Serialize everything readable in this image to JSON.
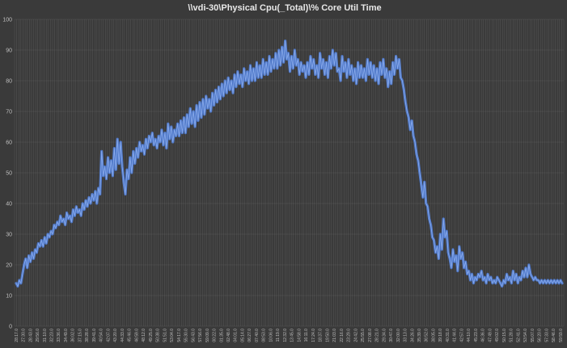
{
  "chart_data": {
    "type": "line",
    "title": "\\\\vdi-30\\Physical Cpu(_Total)\\% Core Util Time",
    "xlabel": "",
    "ylabel": "",
    "ylim": [
      0,
      100
    ],
    "yticks": [
      0,
      10,
      20,
      30,
      40,
      50,
      60,
      70,
      80,
      90,
      100
    ],
    "grid": true,
    "legend": "none",
    "colors": {
      "background": "#3a3a3a",
      "line": "#4f78c8",
      "line_glow": "#8fb0ee",
      "grid": "#7a7a7a",
      "text": "#bfbfbf"
    },
    "xtick_labels": [
      "28:17.0",
      "27:30.0",
      "28:43.0",
      "29:56.0",
      "31:10.0",
      "32:23.0",
      "33:36.0",
      "34:49.0",
      "36:02.0",
      "37:15.0",
      "38:28.0",
      "39:41.0",
      "40:54.0",
      "42:07.0",
      "43:20.0",
      "44:33.0",
      "45:46.0",
      "46:59.0",
      "48:12.0",
      "49:25.0",
      "50:38.0",
      "51:51.0",
      "53:04.0",
      "54:17.0",
      "55:30.0",
      "56:43.0",
      "57:56.0",
      "59:09.0",
      "00:22.0",
      "01:35.0",
      "02:48.0",
      "04:01.0",
      "05:14.0",
      "06:27.0",
      "07:40.0",
      "08:53.0",
      "10:06.0",
      "11:19.0",
      "12:32.0",
      "13:45.0",
      "14:58.0",
      "16:11.0",
      "17:24.0",
      "18:37.0",
      "19:50.0",
      "21:03.0",
      "22:16.0",
      "23:29.0",
      "24:42.0",
      "25:55.0",
      "27:08.0",
      "28:21.0",
      "29:34.0",
      "30:47.0",
      "32:00.0",
      "33:13.0",
      "34:26.0",
      "35:39.0",
      "36:52.0",
      "38:05.0",
      "39:18.0",
      "40:31.0",
      "41:44.0",
      "42:57.0",
      "44:10.0",
      "45:23.0",
      "46:36.0",
      "47:49.0",
      "49:02.0",
      "50:15.0",
      "51:28.0",
      "52:41.0",
      "53:54.0",
      "55:07.0",
      "56:20.0",
      "57:33.0",
      "58:46.0",
      "59:59.0"
    ],
    "series": [
      {
        "x_start": 0,
        "x_end": 100,
        "values": [
          14,
          13,
          15,
          14,
          17,
          20,
          22,
          19,
          23,
          21,
          24,
          22,
          25,
          24,
          27,
          26,
          28,
          26,
          29,
          27,
          30,
          29,
          31,
          30,
          33,
          32,
          34,
          33,
          36,
          34,
          35,
          33,
          37,
          35,
          36,
          34,
          38,
          36,
          39,
          37,
          38,
          36,
          40,
          38,
          41,
          39,
          42,
          40,
          43,
          41,
          44,
          40,
          45,
          43,
          57,
          49,
          52,
          48,
          55,
          50,
          54,
          49,
          58,
          51,
          61,
          53,
          60,
          52,
          47,
          43,
          51,
          48,
          55,
          50,
          57,
          53,
          58,
          55,
          60,
          57,
          59,
          56,
          61,
          58,
          62,
          60,
          63,
          59,
          61,
          58,
          62,
          60,
          64,
          59,
          63,
          58,
          66,
          61,
          65,
          60,
          64,
          62,
          66,
          62,
          67,
          63,
          68,
          63,
          69,
          65,
          71,
          66,
          70,
          65,
          72,
          67,
          73,
          68,
          74,
          69,
          75,
          71,
          74,
          70,
          76,
          72,
          77,
          73,
          78,
          74,
          79,
          75,
          80,
          76,
          81,
          77,
          80,
          76,
          82,
          78,
          83,
          79,
          82,
          78,
          84,
          80,
          83,
          79,
          85,
          80,
          84,
          80,
          86,
          81,
          85,
          81,
          87,
          82,
          86,
          82,
          88,
          83,
          87,
          84,
          89,
          84,
          90,
          85,
          91,
          86,
          93,
          87,
          89,
          83,
          88,
          84,
          90,
          85,
          87,
          82,
          86,
          83,
          85,
          81,
          86,
          82,
          88,
          84,
          87,
          82,
          85,
          81,
          89,
          84,
          87,
          82,
          86,
          81,
          88,
          84,
          90,
          85,
          89,
          83,
          84,
          80,
          88,
          83,
          86,
          81,
          87,
          82,
          85,
          80,
          84,
          79,
          86,
          81,
          85,
          81,
          84,
          80,
          87,
          82,
          86,
          81,
          85,
          80,
          84,
          79,
          86,
          82,
          87,
          81,
          84,
          78,
          83,
          79,
          86,
          82,
          88,
          84,
          87,
          81,
          80,
          77,
          73,
          70,
          68,
          64,
          67,
          62,
          60,
          56,
          54,
          50,
          46,
          42,
          47,
          40,
          39,
          35,
          33,
          29,
          28,
          24,
          26,
          22,
          30,
          25,
          35,
          29,
          31,
          24,
          22,
          19,
          25,
          21,
          23,
          18,
          26,
          22,
          24,
          19,
          21,
          17,
          18,
          15,
          17,
          14,
          16,
          15,
          17,
          16,
          18,
          15,
          16,
          14,
          17,
          15,
          16,
          14,
          15,
          14,
          16,
          15,
          14,
          13,
          15,
          14,
          17,
          15,
          16,
          14,
          18,
          15,
          17,
          14,
          16,
          15,
          18,
          16,
          19,
          16,
          20,
          17,
          16,
          15,
          16,
          15,
          15,
          14,
          15,
          14,
          15,
          14,
          15,
          14,
          15,
          14,
          15,
          14,
          15,
          14,
          15,
          14
        ]
      }
    ]
  }
}
